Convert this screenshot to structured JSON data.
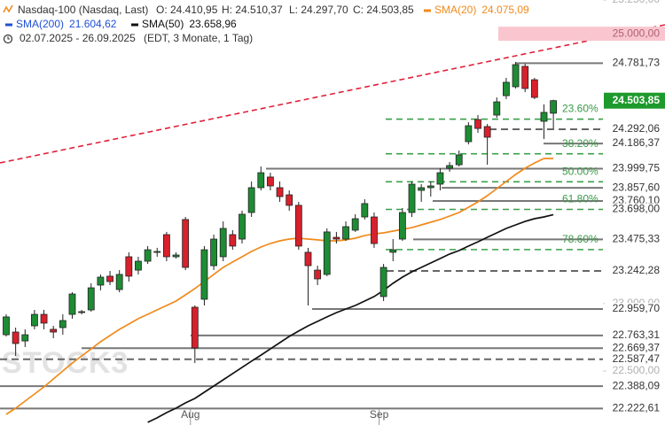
{
  "chart_data": {
    "type": "candlestick",
    "title": "Nasdaq-100 (Nasdaq, Last)",
    "ohlc_labels": [
      "O: 24.410,95",
      "H: 24.510,37",
      "L: 24.297,70",
      "C: 24.503,85"
    ],
    "date_range": "02.07.2025 - 26.09.2025",
    "period": "(EDT, 3 Monate, 1 Tag)",
    "watermark": "STOCK3",
    "categories": [
      null,
      null,
      null,
      null,
      null,
      null,
      null,
      null,
      null,
      null,
      null,
      null,
      null,
      null,
      null,
      null,
      null,
      null,
      null,
      null,
      "Aug",
      null,
      null,
      null,
      null,
      null,
      null,
      null,
      null,
      null,
      null,
      null,
      null,
      null,
      null,
      null,
      null,
      null,
      null,
      null,
      "Sep",
      null,
      null,
      null,
      null,
      null,
      null,
      null,
      null,
      null,
      null,
      null,
      null,
      null,
      null,
      null,
      null,
      null,
      null
    ],
    "open": [
      22769,
      22789,
      22723,
      22835,
      22920,
      22809,
      22822,
      22920,
      22940,
      22953,
      23137,
      23203,
      23104,
      23347,
      23248,
      23314,
      23386,
      23511,
      23347,
      23623,
      22973,
      23032,
      23281,
      23347,
      23511,
      23478,
      23675,
      23859,
      23938,
      23859,
      23806,
      23728,
      23380,
      23248,
      23216,
      23491,
      23478,
      23544,
      23642,
      23642,
      23052,
      23380,
      23478,
      23675,
      23839,
      23859,
      23885,
      24003,
      24029,
      24200,
      24364,
      24312,
      24397,
      24541,
      24607,
      24758,
      24659,
      24351,
      24410.95
    ],
    "high": [
      22920,
      22822,
      22809,
      22953,
      22953,
      22835,
      22920,
      23084,
      22953,
      23150,
      23216,
      23242,
      23248,
      23380,
      23347,
      23426,
      23413,
      23531,
      23380,
      23642,
      22986,
      23426,
      23511,
      23609,
      23544,
      23688,
      23905,
      24016,
      23970,
      23905,
      23839,
      23754,
      23413,
      23281,
      23557,
      23531,
      23609,
      23662,
      23773,
      23675,
      23294,
      23478,
      23708,
      23905,
      23885,
      23905,
      24003,
      24049,
      24134,
      24344,
      24397,
      24331,
      24528,
      24673,
      24791,
      24777,
      24673,
      24476,
      24510.37
    ],
    "low": [
      22756,
      22612,
      22678,
      22809,
      22809,
      22743,
      22769,
      22888,
      22920,
      22940,
      23098,
      23137,
      23084,
      23163,
      23216,
      23294,
      23347,
      23314,
      23334,
      23248,
      22559,
      22986,
      23248,
      23314,
      23399,
      23445,
      23642,
      23839,
      23839,
      23754,
      23688,
      23399,
      22986,
      23137,
      23203,
      23445,
      23465,
      23531,
      23623,
      23413,
      23019,
      23314,
      23465,
      23642,
      23754,
      23793,
      23839,
      23977,
      24016,
      24180,
      24266,
      24029,
      24377,
      24515,
      24594,
      24567,
      24515,
      24220,
      24297.7
    ],
    "close": [
      22901,
      22704,
      22769,
      22920,
      22855,
      22789,
      22874,
      23071,
      22940,
      23117,
      23196,
      23163,
      23216,
      23203,
      23314,
      23399,
      23386,
      23347,
      23360,
      23268,
      22671,
      23399,
      23478,
      23557,
      23426,
      23662,
      23859,
      23970,
      23872,
      23793,
      23728,
      23426,
      23281,
      23183,
      23531,
      23478,
      23570,
      23629,
      23741,
      23445,
      23268,
      23399,
      23675,
      23885,
      23859,
      23872,
      23970,
      24023,
      24102,
      24318,
      24298,
      24233,
      24495,
      24640,
      24771,
      24594,
      24528,
      24417,
      24503.85
    ],
    "up_color": "#1e8c34",
    "down_color": "#d7212c",
    "series": [
      {
        "name": "SMA(200)",
        "color": "#1f4fd6",
        "value_label": "21.604,62"
      },
      {
        "name": "SMA(50)",
        "color": "#111111",
        "value_label": "23.658,96",
        "values": [
          null,
          null,
          null,
          null,
          null,
          null,
          null,
          null,
          null,
          null,
          null,
          null,
          null,
          null,
          null,
          22120,
          22153,
          22192,
          22225,
          22264,
          22297,
          22343,
          22389,
          22435,
          22481,
          22527,
          22573,
          22618,
          22664,
          22710,
          22756,
          22796,
          22835,
          22868,
          22901,
          22933,
          22960,
          22986,
          23019,
          23052,
          23098,
          23150,
          23196,
          23235,
          23268,
          23301,
          23334,
          23367,
          23393,
          23426,
          23458,
          23491,
          23524,
          23557,
          23583,
          23609,
          23629,
          23642,
          23658.96
        ]
      },
      {
        "name": "SMA(20)",
        "color": "#f08a1c",
        "value_label": "24.075,09",
        "values": [
          22179,
          22225,
          22277,
          22330,
          22382,
          22441,
          22500,
          22559,
          22612,
          22664,
          22717,
          22763,
          22809,
          22848,
          22888,
          22920,
          22953,
          22986,
          23019,
          23065,
          23111,
          23163,
          23216,
          23268,
          23308,
          23347,
          23386,
          23419,
          23445,
          23465,
          23478,
          23485,
          23478,
          23472,
          23465,
          23465,
          23472,
          23485,
          23504,
          23517,
          23524,
          23537,
          23550,
          23563,
          23583,
          23603,
          23623,
          23649,
          23675,
          23714,
          23754,
          23800,
          23852,
          23905,
          23957,
          24003,
          24042,
          24075,
          24075.09
        ]
      }
    ],
    "ylim": [
      22100,
      25250
    ],
    "yticks": [
      {
        "value": 25250,
        "label": "25.250,00"
      },
      {
        "value": 23000,
        "label": "23.000,00"
      },
      {
        "value": 22500,
        "label": "22.500,00"
      }
    ],
    "alert": {
      "value": 25000,
      "label": "25.000,00"
    },
    "last_price": {
      "value": 24503.85,
      "label": "24.503,85"
    },
    "levels": [
      {
        "value": 24781.73,
        "label": "24.781,73"
      },
      {
        "value": 24292.06,
        "label": "24.292,06"
      },
      {
        "value": 24186.37,
        "label": "24.186,37"
      },
      {
        "value": 23999.75,
        "label": "23.999,75"
      },
      {
        "value": 23857.6,
        "label": "23.857,60"
      },
      {
        "value": 23760.1,
        "label": "23.760,10"
      },
      {
        "value": 23698.0,
        "label": "23.698,00"
      },
      {
        "value": 23475.33,
        "label": "23.475,33"
      },
      {
        "value": 23242.28,
        "label": "23.242,28"
      },
      {
        "value": 22959.7,
        "label": "22.959,70"
      },
      {
        "value": 22763.31,
        "label": "22.763,31"
      },
      {
        "value": 22669.37,
        "label": "22.669,37"
      },
      {
        "value": 22587.47,
        "label": "22.587,47"
      },
      {
        "value": 22388.09,
        "label": "22.388,09"
      },
      {
        "value": 22222.61,
        "label": "22.222,61"
      }
    ],
    "fibonacci": [
      {
        "label": "23.60%",
        "value": 24366.9
      },
      {
        "label": "38.20%",
        "value": 24110.3
      },
      {
        "label": "50.00%",
        "value": 23902.9
      },
      {
        "label": "61.80%",
        "value": 23698.0
      },
      {
        "label": "78.60%",
        "value": 23400.2
      }
    ]
  }
}
